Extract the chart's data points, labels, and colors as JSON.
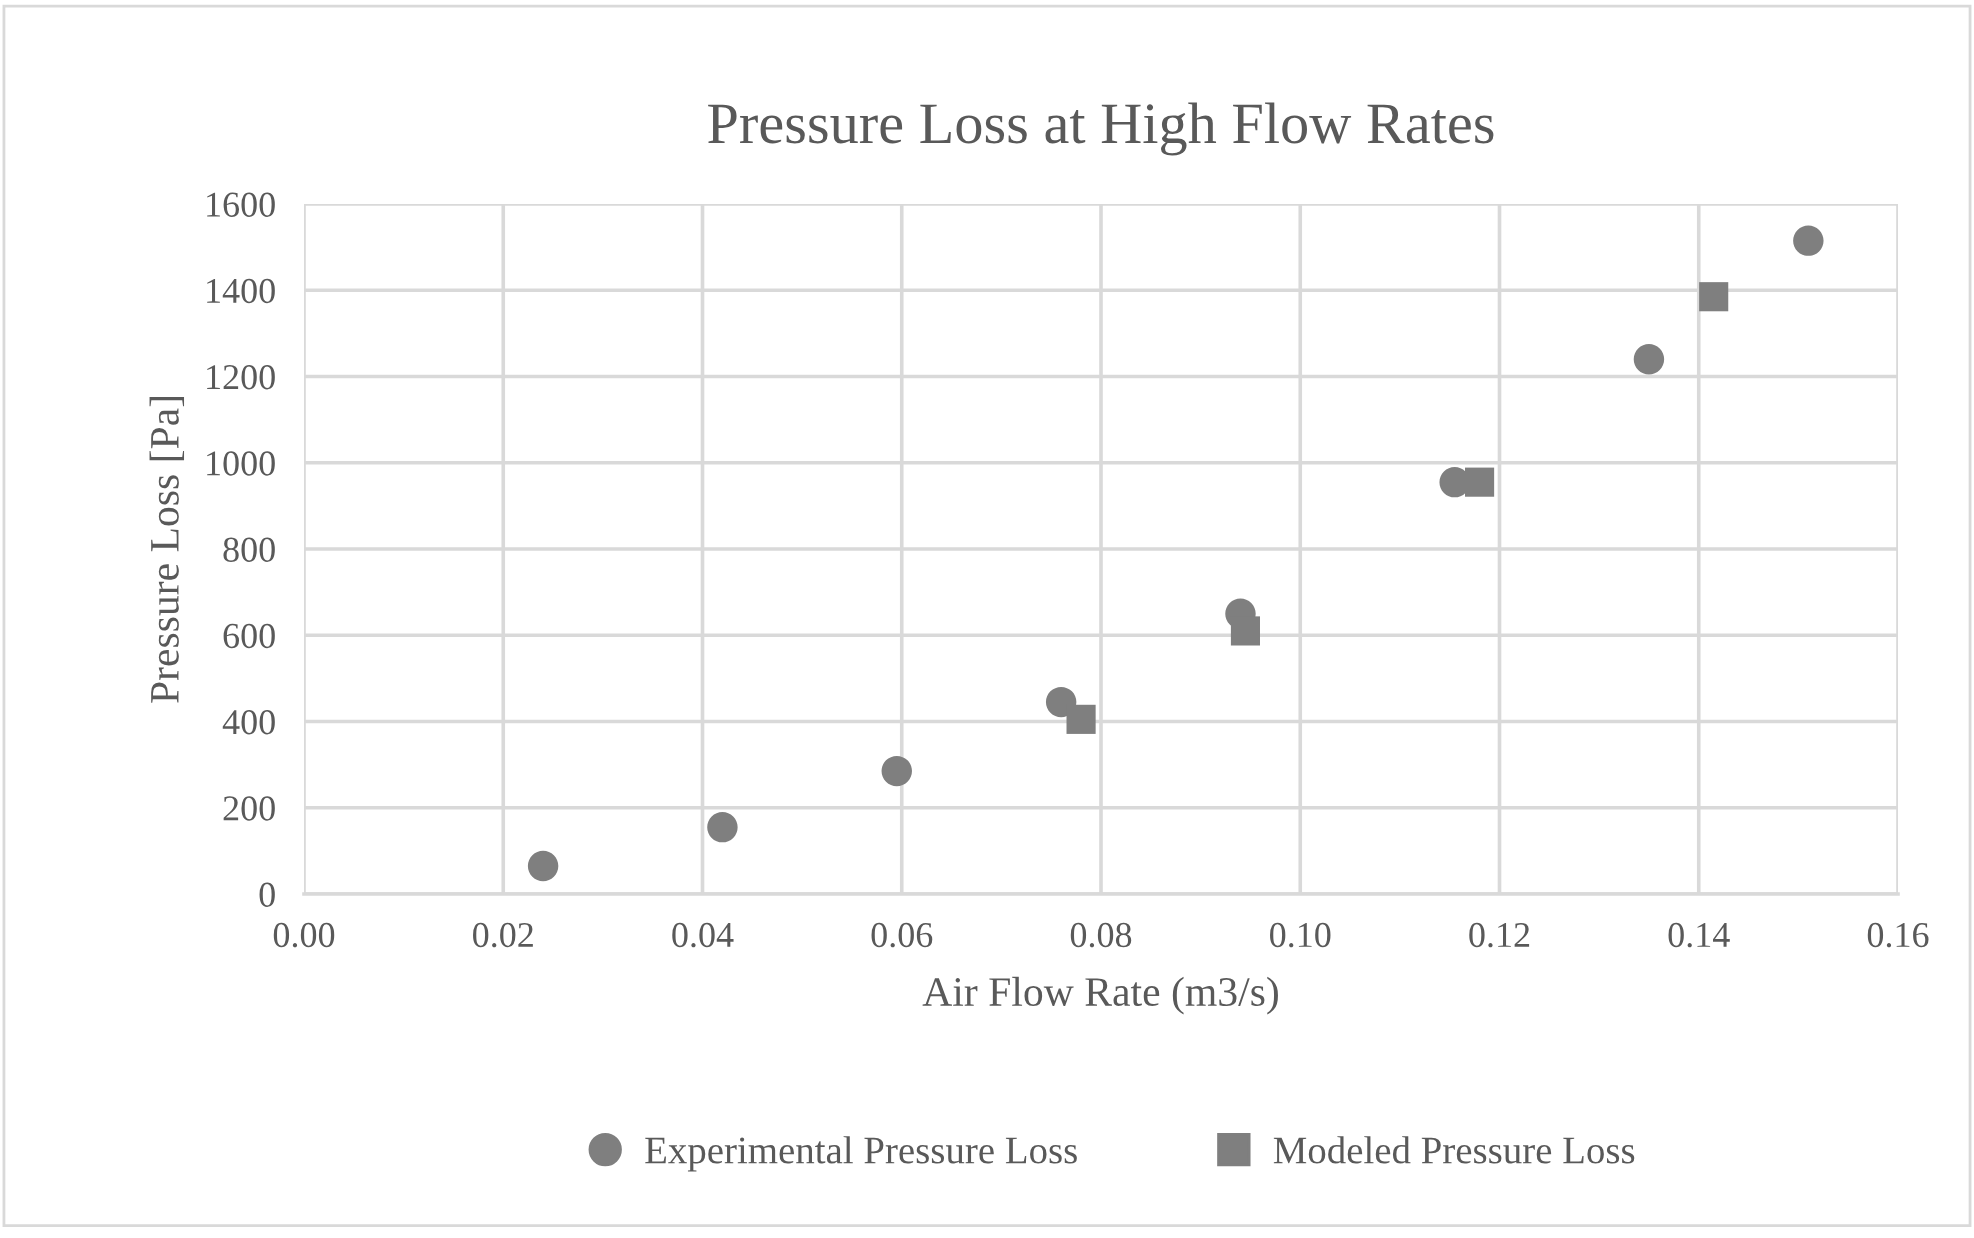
{
  "chart_data": {
    "type": "scatter",
    "title": "Pressure Loss at High Flow Rates",
    "xlabel": "Air Flow Rate (m3/s)",
    "ylabel": "Pressure Loss [Pa]",
    "series": [
      {
        "name": "Experimental Pressure Loss",
        "color": "#7f7f7f",
        "marker": "circle",
        "x": [
          0.024,
          0.042,
          0.0595,
          0.076,
          0.094,
          0.1155,
          0.135,
          0.151
        ],
        "values": [
          65,
          155,
          285,
          445,
          650,
          955,
          1240,
          1515
        ]
      },
      {
        "name": "Modeled Pressure Loss",
        "color": "#7f7f7f",
        "marker": "square",
        "x": [
          0.078,
          0.0945,
          0.118,
          0.1415
        ],
        "values": [
          405,
          610,
          955,
          1385
        ]
      }
    ],
    "xlim": [
      0,
      0.16
    ],
    "xticks": [
      {
        "value": 0,
        "label": "0.00"
      },
      {
        "value": 0.02,
        "label": "0.02"
      },
      {
        "value": 0.04,
        "label": "0.04"
      },
      {
        "value": 0.06,
        "label": "0.06"
      },
      {
        "value": 0.08,
        "label": "0.08"
      },
      {
        "value": 0.1,
        "label": "0.10"
      },
      {
        "value": 0.12,
        "label": "0.12"
      },
      {
        "value": 0.14,
        "label": "0.14"
      },
      {
        "value": 0.16,
        "label": "0.16"
      }
    ],
    "ylim": [
      0,
      1600
    ],
    "yticks": [
      0,
      200,
      400,
      600,
      800,
      1000,
      1200,
      1400,
      1600
    ],
    "grid": true,
    "legend": "bottom"
  }
}
